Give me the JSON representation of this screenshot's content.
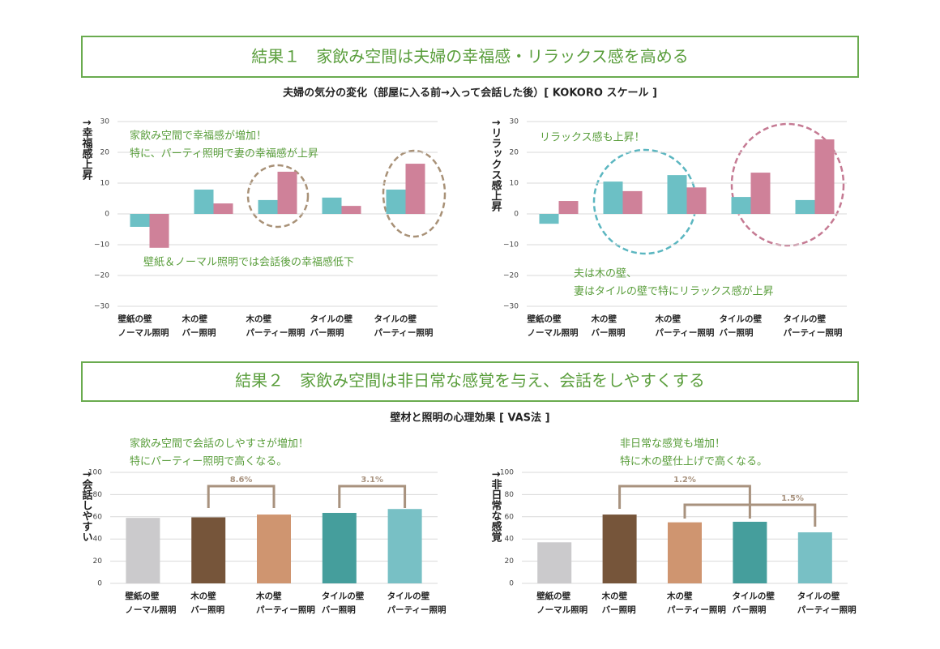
{
  "sections": [
    {
      "title": "結果１　家飲み空間は夫婦の幸福感・リラックス感を高める",
      "subtitle": "夫婦の気分の変化（部屋に入る前→入って会話した後）[ KOKORO スケール ]"
    },
    {
      "title": "結果２　家飲み空間は非日常な感覚を与え、会話をしやすくする",
      "subtitle": "壁材と照明の心理効果 [ VAS法 ]"
    }
  ],
  "chart_data": [
    {
      "type": "bar",
      "y_label": "↑幸福感上昇",
      "categories": [
        [
          "壁紙の壁",
          "ノーマル照明"
        ],
        [
          "木の壁",
          "バー照明"
        ],
        [
          "木の壁",
          "パーティー照明"
        ],
        [
          "タイルの壁",
          "バー照明"
        ],
        [
          "タイルの壁",
          "パーティー照明"
        ]
      ],
      "series": [
        {
          "color": "#6cc0c5",
          "values": [
            -4.2,
            7.9,
            4.5,
            5.3,
            7.9
          ]
        },
        {
          "color": "#cf8199",
          "values": [
            -11,
            3.4,
            13.7,
            2.6,
            16.3
          ]
        }
      ],
      "ylim": [
        -30,
        30
      ],
      "yticks": [
        {
          "value": -30,
          "label": "−30"
        },
        {
          "value": -20,
          "label": "−20"
        },
        {
          "value": -10,
          "label": "−10"
        },
        0,
        10,
        20,
        30
      ],
      "grid": true,
      "annotations": [
        [
          "家飲み空間で幸福感が増加！",
          "特に、パーティ照明で妻の幸福感が上昇"
        ],
        [
          "壁紙＆ノーマル照明では会話後の幸福感低下"
        ]
      ]
    },
    {
      "type": "bar",
      "y_label": "↑リラックス感上昇",
      "categories": [
        [
          "壁紙の壁",
          "ノーマル照明"
        ],
        [
          "木の壁",
          "バー照明"
        ],
        [
          "木の壁",
          "パーティー照明"
        ],
        [
          "タイルの壁",
          "バー照明"
        ],
        [
          "タイルの壁",
          "パーティー照明"
        ]
      ],
      "series": [
        {
          "color": "#6cc0c5",
          "values": [
            -3.2,
            10.5,
            12.6,
            5.5,
            4.5
          ]
        },
        {
          "color": "#cf8199",
          "values": [
            4.2,
            7.4,
            8.6,
            13.4,
            24.2
          ]
        }
      ],
      "ylim": [
        -30,
        30
      ],
      "yticks": [
        {
          "value": -30,
          "label": "−30"
        },
        {
          "value": -20,
          "label": "−20"
        },
        {
          "value": -10,
          "label": "−10"
        },
        0,
        10,
        20,
        30
      ],
      "grid": true,
      "annotations": [
        [
          "リラックス感も上昇！"
        ],
        [
          "夫は木の壁、",
          "妻はタイルの壁で特にリラックス感が上昇"
        ]
      ]
    },
    {
      "type": "bar",
      "y_label": "↑会話しやすい",
      "categories": [
        [
          "壁紙の壁",
          "ノーマル照明"
        ],
        [
          "木の壁",
          "バー照明"
        ],
        [
          "木の壁",
          "パーティー照明"
        ],
        [
          "タイルの壁",
          "バー照明"
        ],
        [
          "タイルの壁",
          "パーティー照明"
        ]
      ],
      "values": [
        59,
        59.5,
        62,
        63.5,
        67
      ],
      "colors": [
        "#cbcacc",
        "#76553a",
        "#cf9570",
        "#459e9c",
        "#78c0c5"
      ],
      "ylim": [
        0,
        100
      ],
      "yticks": [
        0,
        20,
        40,
        60,
        80,
        100
      ],
      "grid": true,
      "annotations": [
        [
          "家飲み空間で会話のしやすさが増加！",
          "特にパーティー照明で高くなる。"
        ]
      ],
      "bracket_labels": [
        "8.6%",
        "3.1%"
      ]
    },
    {
      "type": "bar",
      "y_label": "↑非日常な感覚",
      "categories": [
        [
          "壁紙の壁",
          "ノーマル照明"
        ],
        [
          "木の壁",
          "バー照明"
        ],
        [
          "木の壁",
          "パーティー照明"
        ],
        [
          "タイルの壁",
          "バー照明"
        ],
        [
          "タイルの壁",
          "パーティー照明"
        ]
      ],
      "values": [
        37,
        62,
        55,
        55.5,
        46
      ],
      "colors": [
        "#cbcacc",
        "#76553a",
        "#cf9570",
        "#459e9c",
        "#78c0c5"
      ],
      "ylim": [
        0,
        100
      ],
      "yticks": [
        0,
        20,
        40,
        60,
        80,
        100
      ],
      "grid": true,
      "annotations": [
        [
          "非日常な感覚も増加！",
          "特に木の壁仕上げで高くなる。"
        ]
      ],
      "bracket_labels": [
        "1.2%",
        "1.5%"
      ]
    }
  ]
}
